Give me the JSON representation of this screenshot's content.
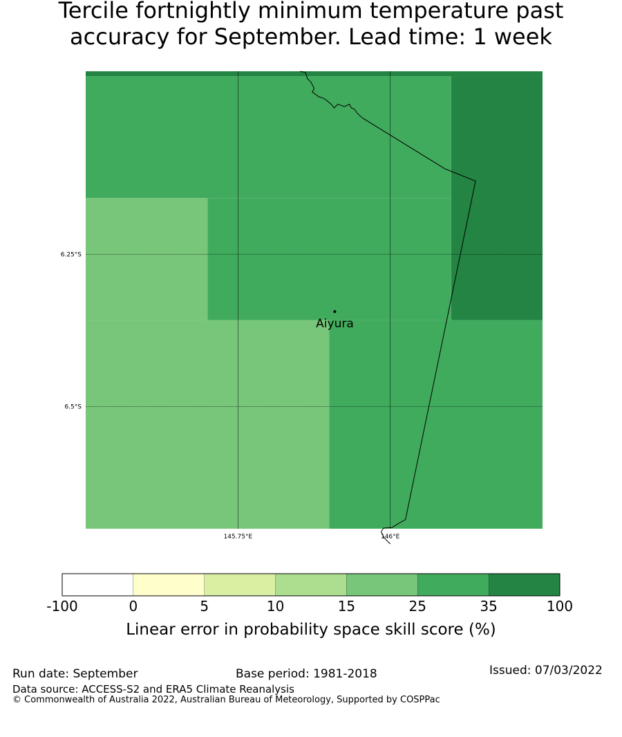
{
  "title": {
    "line1": "Tercile fortnightly minimum temperature past",
    "line2": "accuracy for September. Lead time: 1 week"
  },
  "map": {
    "lat_range": [
      -6.7,
      -5.95
    ],
    "lon_range": [
      145.5,
      146.25
    ],
    "lat_ticks": [
      {
        "value": -6.25,
        "label": "6.25°S"
      },
      {
        "value": -6.5,
        "label": "6.5°S"
      }
    ],
    "lon_ticks": [
      {
        "value": 145.75,
        "label": "145.75°E"
      },
      {
        "value": 146.0,
        "label": "146°E"
      }
    ],
    "grid_cells": [
      {
        "lon_min": 145.5,
        "lon_max": 146.25,
        "lat_min": -5.958,
        "lat_max": -5.95,
        "level": 6
      },
      {
        "lon_min": 145.5,
        "lon_max": 146.1,
        "lat_min": -6.158,
        "lat_max": -5.958,
        "level": 5
      },
      {
        "lon_min": 146.1,
        "lon_max": 146.25,
        "lat_min": -6.358,
        "lat_max": -5.958,
        "level": 6
      },
      {
        "lon_min": 145.5,
        "lon_max": 145.7,
        "lat_min": -6.358,
        "lat_max": -6.158,
        "level": 4
      },
      {
        "lon_min": 145.7,
        "lon_max": 146.1,
        "lat_min": -6.358,
        "lat_max": -6.158,
        "level": 5
      },
      {
        "lon_min": 145.5,
        "lon_max": 145.9,
        "lat_min": -6.7,
        "lat_max": -6.358,
        "level": 4
      },
      {
        "lon_min": 145.9,
        "lon_max": 146.25,
        "lat_min": -6.7,
        "lat_max": -6.358,
        "level": 5
      }
    ],
    "boundary": [
      [
        145.852,
        -5.95
      ],
      [
        145.861,
        -5.952
      ],
      [
        145.864,
        -5.962
      ],
      [
        145.87,
        -5.968
      ],
      [
        145.875,
        -5.978
      ],
      [
        145.872,
        -5.984
      ],
      [
        145.883,
        -5.992
      ],
      [
        145.89,
        -5.994
      ],
      [
        145.897,
        -5.999
      ],
      [
        145.903,
        -6.004
      ],
      [
        145.908,
        -6.01
      ],
      [
        145.914,
        -6.004
      ],
      [
        145.925,
        -6.008
      ],
      [
        145.933,
        -6.004
      ],
      [
        145.936,
        -6.01
      ],
      [
        145.941,
        -6.012
      ],
      [
        145.946,
        -6.019
      ],
      [
        145.955,
        -6.027
      ],
      [
        146.09,
        -6.11
      ],
      [
        146.14,
        -6.13
      ],
      [
        146.025,
        -6.685
      ],
      [
        146.016,
        -6.69
      ],
      [
        146.003,
        -6.698
      ],
      [
        145.989,
        -6.699
      ],
      [
        145.985,
        -6.705
      ],
      [
        145.99,
        -6.715
      ],
      [
        146.0,
        -6.725
      ]
    ],
    "place": {
      "name": "Aiyura",
      "lon": 145.909,
      "lat": -6.344
    }
  },
  "legend": {
    "tick_labels": [
      "-100",
      "0",
      "5",
      "10",
      "15",
      "25",
      "35",
      "100"
    ],
    "colors": [
      "#ffffff",
      "#ffffcc",
      "#d9f0a3",
      "#addd8e",
      "#78c679",
      "#41ab5d",
      "#238443"
    ],
    "label": "Linear error in probability space skill score (%)"
  },
  "footer": {
    "run_date": "Run date: September",
    "base_period": "Base period: 1981-2018",
    "issued": "Issued: 07/03/2022",
    "data_source": "Data source: ACCESS-S2 and ERA5 Climate Reanalysis",
    "copyright": "© Commonwealth of Australia 2022, Australian Bureau of Meteorology, Supported by COSPPac"
  }
}
